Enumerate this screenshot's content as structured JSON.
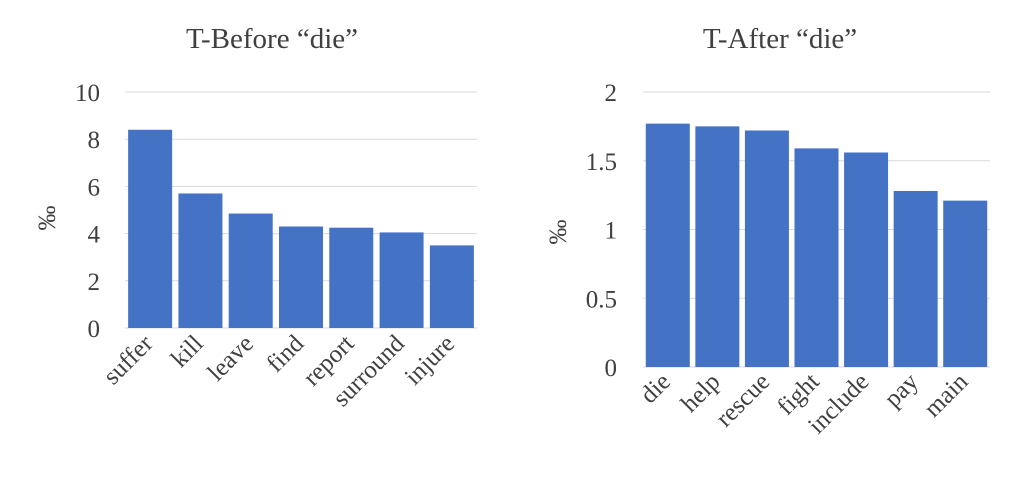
{
  "chart_data": [
    {
      "type": "bar",
      "title": "T-Before “die”",
      "xlabel": "",
      "ylabel": "‰",
      "categories": [
        "suffer",
        "kill",
        "leave",
        "find",
        "report",
        "surround",
        "injure"
      ],
      "values": [
        8.4,
        5.7,
        4.85,
        4.3,
        4.25,
        4.05,
        3.5
      ],
      "ylim": [
        0,
        10
      ],
      "yticks": [
        "0",
        "2",
        "4",
        "6",
        "8",
        "10"
      ],
      "grid": true,
      "bar_color": "#4472c4"
    },
    {
      "type": "bar",
      "title": "T-After “die”",
      "xlabel": "",
      "ylabel": "‰",
      "categories": [
        "die",
        "help",
        "rescue",
        "fight",
        "include",
        "pay",
        "main"
      ],
      "values": [
        1.77,
        1.75,
        1.72,
        1.59,
        1.56,
        1.28,
        1.21
      ],
      "ylim": [
        0,
        2
      ],
      "yticks": [
        "0",
        "0.5",
        "1",
        "1.5",
        "2"
      ],
      "grid": true,
      "bar_color": "#4472c4"
    }
  ]
}
